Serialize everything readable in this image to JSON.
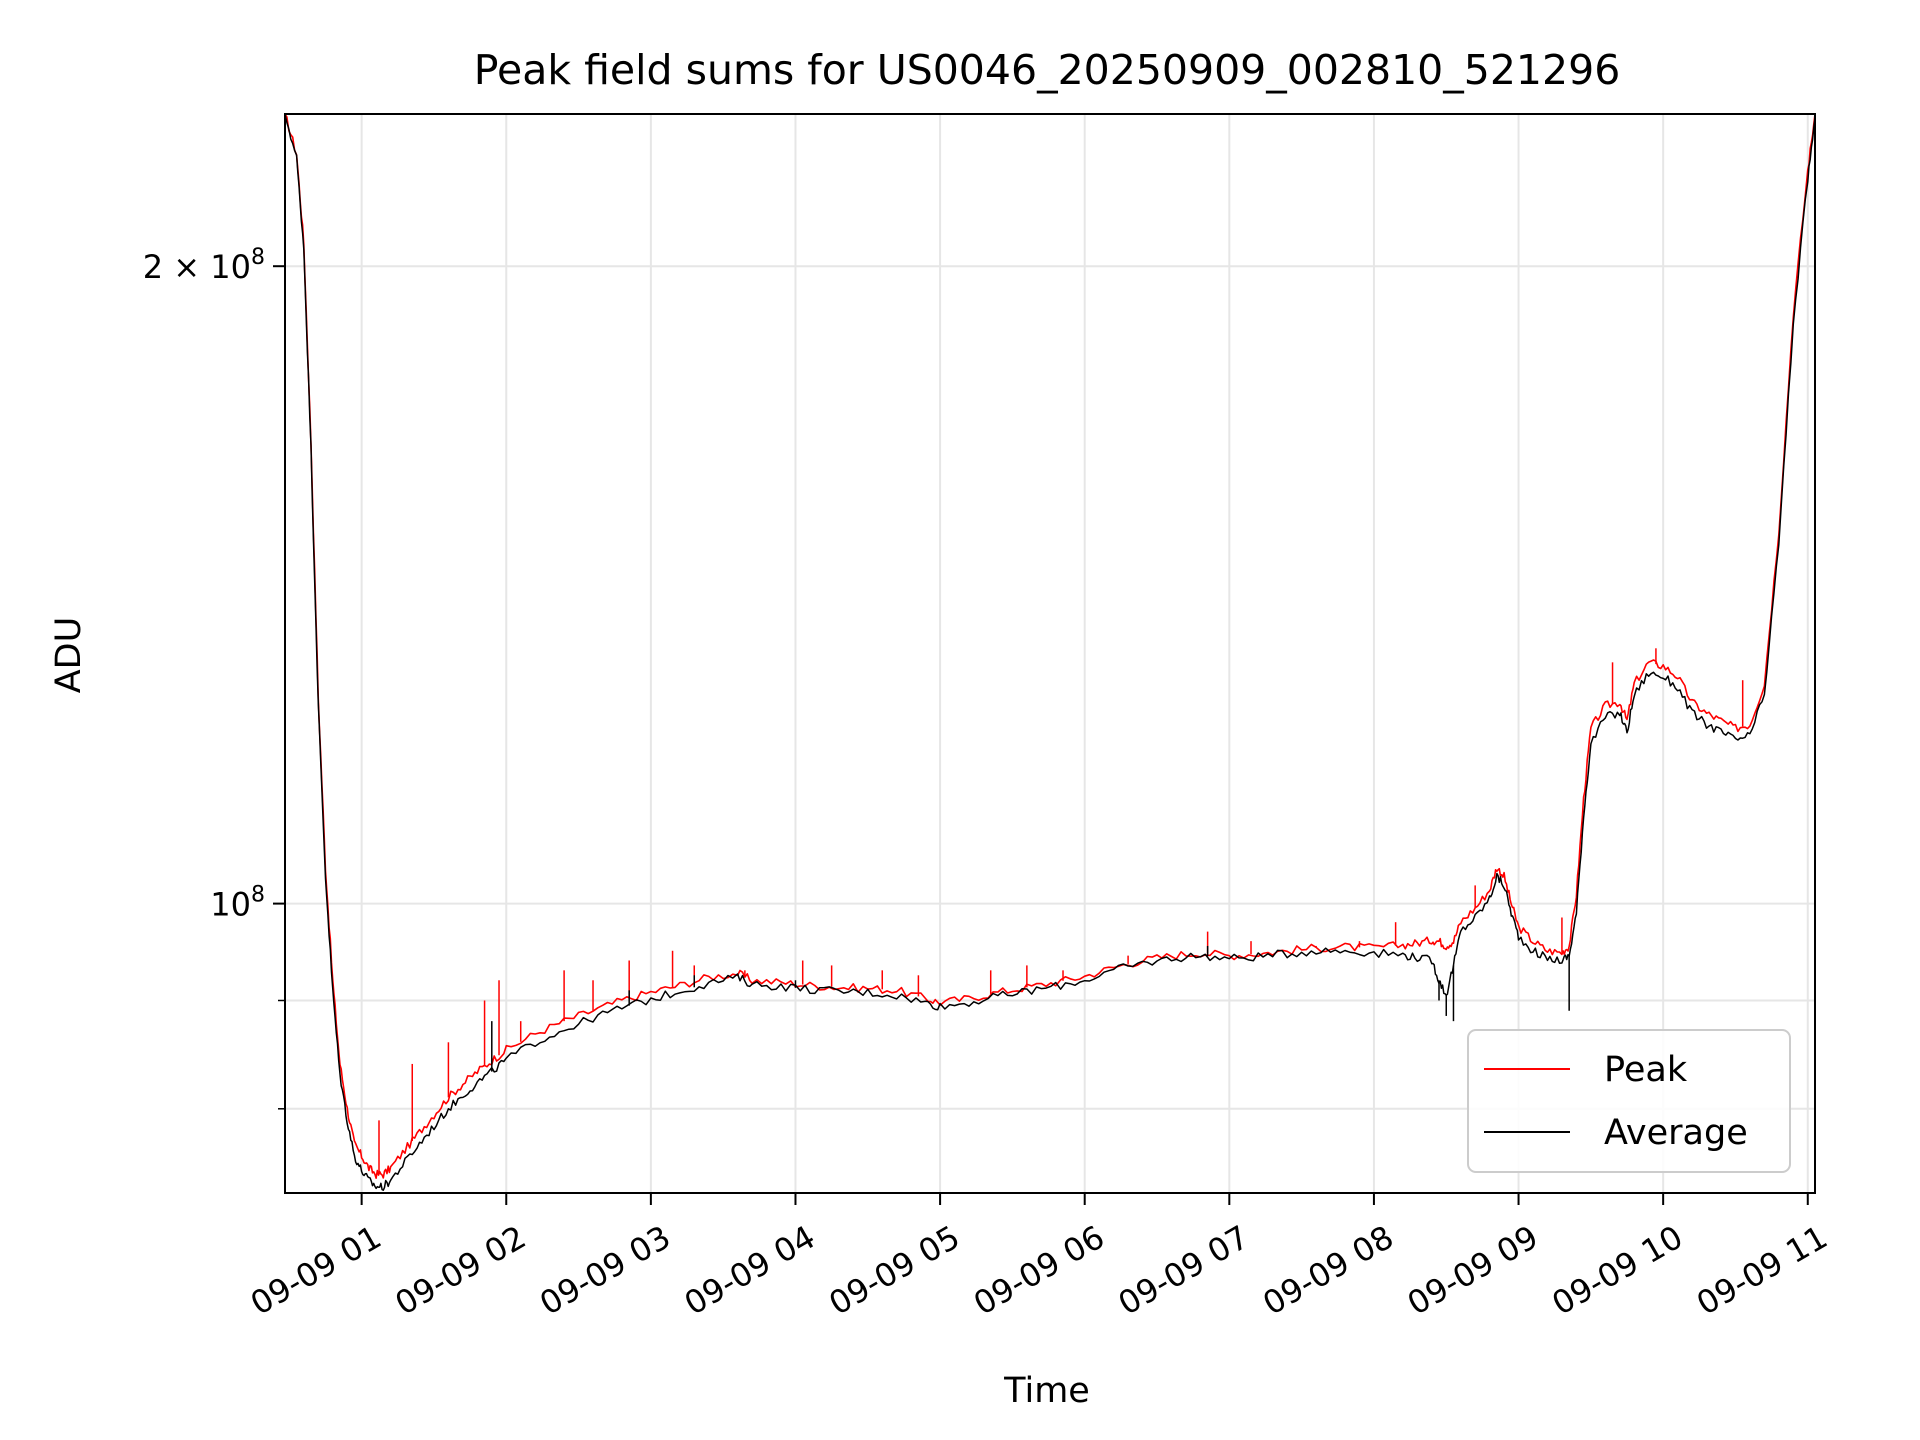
{
  "chart_data": {
    "type": "line",
    "title": "Peak field sums for US0046_20250909_002810_521296",
    "xlabel": "Time",
    "ylabel": "ADU",
    "yscale": "log",
    "ylim": [
      73000000,
      236000000
    ],
    "xlim_hours": [
      0.47,
      11.05
    ],
    "grid": true,
    "legend_position": "lower-right",
    "x_tick_labels": [
      "09-09 01",
      "09-09 02",
      "09-09 03",
      "09-09 04",
      "09-09 05",
      "09-09 06",
      "09-09 07",
      "09-09 08",
      "09-09 09",
      "09-09 10",
      "09-09 11"
    ],
    "x_tick_hours": [
      1,
      2,
      3,
      4,
      5,
      6,
      7,
      8,
      9,
      10,
      11
    ],
    "y_tick_labels": [
      {
        "value": 100000000,
        "base": "10",
        "exp": "8",
        "prefix": ""
      },
      {
        "value": 200000000,
        "base": "10",
        "exp": "8",
        "prefix": "2 × "
      }
    ],
    "y_minor_ticks": [
      80000000,
      90000000,
      300000000
    ],
    "series": [
      {
        "name": "Peak",
        "color": "#ff0000",
        "values": [
          [
            0.47,
            236000000
          ],
          [
            0.55,
            226000000
          ],
          [
            0.6,
            205000000
          ],
          [
            0.65,
            165000000
          ],
          [
            0.7,
            125000000
          ],
          [
            0.75,
            104000000
          ],
          [
            0.8,
            92000000
          ],
          [
            0.85,
            84000000
          ],
          [
            0.9,
            80000000
          ],
          [
            0.95,
            77000000
          ],
          [
            1.0,
            76000000
          ],
          [
            1.05,
            75000000
          ],
          [
            1.1,
            74500000
          ],
          [
            1.15,
            74500000
          ],
          [
            1.2,
            75000000
          ],
          [
            1.3,
            76500000
          ],
          [
            1.4,
            78000000
          ],
          [
            1.5,
            79500000
          ],
          [
            1.6,
            81000000
          ],
          [
            1.7,
            82200000
          ],
          [
            1.8,
            83300000
          ],
          [
            1.9,
            84300000
          ],
          [
            2.0,
            85300000
          ],
          [
            2.2,
            86800000
          ],
          [
            2.4,
            88000000
          ],
          [
            2.6,
            89000000
          ],
          [
            2.8,
            90000000
          ],
          [
            3.0,
            90800000
          ],
          [
            3.2,
            91500000
          ],
          [
            3.4,
            92300000
          ],
          [
            3.6,
            92700000
          ],
          [
            3.7,
            92000000
          ],
          [
            3.9,
            91800000
          ],
          [
            4.1,
            91500000
          ],
          [
            4.3,
            91300000
          ],
          [
            4.5,
            91200000
          ],
          [
            4.7,
            91000000
          ],
          [
            4.9,
            90200000
          ],
          [
            5.0,
            89800000
          ],
          [
            5.2,
            90200000
          ],
          [
            5.4,
            90800000
          ],
          [
            5.6,
            91300000
          ],
          [
            5.8,
            91800000
          ],
          [
            6.0,
            92400000
          ],
          [
            6.2,
            93300000
          ],
          [
            6.4,
            94000000
          ],
          [
            6.6,
            94500000
          ],
          [
            6.8,
            94800000
          ],
          [
            7.0,
            94500000
          ],
          [
            7.2,
            94700000
          ],
          [
            7.4,
            95000000
          ],
          [
            7.6,
            95300000
          ],
          [
            7.8,
            95400000
          ],
          [
            8.0,
            95300000
          ],
          [
            8.2,
            95600000
          ],
          [
            8.3,
            95800000
          ],
          [
            8.4,
            96100000
          ],
          [
            8.45,
            96000000
          ],
          [
            8.5,
            95500000
          ],
          [
            8.55,
            96000000
          ],
          [
            8.6,
            98000000
          ],
          [
            8.7,
            99500000
          ],
          [
            8.8,
            101500000
          ],
          [
            8.85,
            104000000
          ],
          [
            8.9,
            103000000
          ],
          [
            8.95,
            100000000
          ],
          [
            9.0,
            97500000
          ],
          [
            9.1,
            96000000
          ],
          [
            9.2,
            95000000
          ],
          [
            9.3,
            94800000
          ],
          [
            9.35,
            95500000
          ],
          [
            9.4,
            101000000
          ],
          [
            9.45,
            112000000
          ],
          [
            9.5,
            121000000
          ],
          [
            9.6,
            124000000
          ],
          [
            9.7,
            124500000
          ],
          [
            9.75,
            122000000
          ],
          [
            9.8,
            127000000
          ],
          [
            9.9,
            130000000
          ],
          [
            10.0,
            129500000
          ],
          [
            10.1,
            128000000
          ],
          [
            10.2,
            124500000
          ],
          [
            10.3,
            123000000
          ],
          [
            10.4,
            122000000
          ],
          [
            10.5,
            121000000
          ],
          [
            10.6,
            121500000
          ],
          [
            10.7,
            127000000
          ],
          [
            10.8,
            150000000
          ],
          [
            10.9,
            190000000
          ],
          [
            11.0,
            222000000
          ],
          [
            11.05,
            236000000
          ]
        ]
      },
      {
        "name": "Average",
        "color": "#000000",
        "values": [
          [
            0.47,
            236000000
          ],
          [
            0.55,
            225000000
          ],
          [
            0.6,
            204000000
          ],
          [
            0.65,
            164000000
          ],
          [
            0.7,
            124000000
          ],
          [
            0.75,
            103000000
          ],
          [
            0.8,
            91000000
          ],
          [
            0.85,
            83000000
          ],
          [
            0.9,
            79000000
          ],
          [
            0.95,
            76000000
          ],
          [
            1.0,
            74800000
          ],
          [
            1.05,
            74000000
          ],
          [
            1.1,
            73500000
          ],
          [
            1.15,
            73500000
          ],
          [
            1.2,
            74000000
          ],
          [
            1.3,
            75500000
          ],
          [
            1.4,
            77000000
          ],
          [
            1.5,
            78500000
          ],
          [
            1.6,
            80000000
          ],
          [
            1.7,
            81200000
          ],
          [
            1.8,
            82300000
          ],
          [
            1.9,
            83300000
          ],
          [
            2.0,
            84400000
          ],
          [
            2.2,
            86000000
          ],
          [
            2.4,
            87200000
          ],
          [
            2.6,
            88300000
          ],
          [
            2.8,
            89300000
          ],
          [
            3.0,
            90100000
          ],
          [
            3.2,
            90900000
          ],
          [
            3.4,
            91700000
          ],
          [
            3.6,
            92300000
          ],
          [
            3.7,
            91600000
          ],
          [
            3.9,
            91400000
          ],
          [
            4.1,
            91100000
          ],
          [
            4.3,
            90900000
          ],
          [
            4.5,
            90800000
          ],
          [
            4.7,
            90500000
          ],
          [
            4.9,
            89800000
          ],
          [
            5.0,
            89400000
          ],
          [
            5.2,
            89800000
          ],
          [
            5.4,
            90400000
          ],
          [
            5.6,
            90900000
          ],
          [
            5.8,
            91400000
          ],
          [
            6.0,
            92000000
          ],
          [
            6.2,
            93000000
          ],
          [
            6.4,
            93700000
          ],
          [
            6.6,
            94200000
          ],
          [
            6.8,
            94500000
          ],
          [
            7.0,
            94200000
          ],
          [
            7.2,
            94400000
          ],
          [
            7.4,
            94700000
          ],
          [
            7.6,
            95000000
          ],
          [
            7.8,
            95000000
          ],
          [
            8.0,
            94800000
          ],
          [
            8.2,
            94600000
          ],
          [
            8.3,
            94300000
          ],
          [
            8.4,
            94000000
          ],
          [
            8.45,
            92000000
          ],
          [
            8.5,
            90500000
          ],
          [
            8.55,
            93500000
          ],
          [
            8.6,
            97000000
          ],
          [
            8.7,
            98500000
          ],
          [
            8.8,
            100500000
          ],
          [
            8.85,
            103000000
          ],
          [
            8.9,
            102000000
          ],
          [
            8.95,
            99000000
          ],
          [
            9.0,
            96500000
          ],
          [
            9.1,
            95000000
          ],
          [
            9.2,
            94200000
          ],
          [
            9.3,
            94000000
          ],
          [
            9.35,
            94500000
          ],
          [
            9.4,
            99000000
          ],
          [
            9.45,
            110000000
          ],
          [
            9.5,
            119000000
          ],
          [
            9.6,
            122500000
          ],
          [
            9.7,
            123000000
          ],
          [
            9.75,
            120500000
          ],
          [
            9.8,
            125500000
          ],
          [
            9.9,
            128500000
          ],
          [
            10.0,
            128000000
          ],
          [
            10.1,
            126500000
          ],
          [
            10.2,
            123000000
          ],
          [
            10.3,
            121500000
          ],
          [
            10.4,
            120500000
          ],
          [
            10.5,
            119500000
          ],
          [
            10.6,
            120000000
          ],
          [
            10.7,
            125500000
          ],
          [
            10.8,
            148000000
          ],
          [
            10.9,
            188000000
          ],
          [
            11.0,
            220000000
          ],
          [
            11.05,
            235000000
          ]
        ]
      }
    ],
    "spikes": {
      "Peak": [
        [
          1.12,
          79000000
        ],
        [
          1.35,
          84000000
        ],
        [
          1.6,
          86000000
        ],
        [
          1.85,
          90000000
        ],
        [
          1.95,
          92000000
        ],
        [
          2.1,
          88000000
        ],
        [
          2.4,
          93000000
        ],
        [
          2.6,
          92000000
        ],
        [
          2.85,
          94000000
        ],
        [
          3.15,
          95000000
        ],
        [
          3.3,
          93500000
        ],
        [
          3.65,
          93000000
        ],
        [
          4.05,
          94000000
        ],
        [
          4.25,
          93500000
        ],
        [
          4.6,
          93000000
        ],
        [
          4.85,
          92500000
        ],
        [
          5.35,
          93000000
        ],
        [
          5.6,
          93500000
        ],
        [
          5.85,
          93000000
        ],
        [
          6.3,
          94500000
        ],
        [
          6.85,
          97000000
        ],
        [
          7.15,
          96000000
        ],
        [
          7.6,
          95500000
        ],
        [
          7.9,
          96000000
        ],
        [
          8.15,
          98000000
        ],
        [
          8.7,
          102000000
        ],
        [
          9.3,
          98500000
        ],
        [
          9.65,
          130000000
        ],
        [
          9.95,
          132000000
        ],
        [
          10.55,
          127500000
        ]
      ],
      "Average": [
        [
          1.9,
          88000000
        ],
        [
          2.85,
          91000000
        ],
        [
          3.3,
          92500000
        ],
        [
          4.0,
          92000000
        ],
        [
          6.85,
          95500000
        ],
        [
          8.5,
          88500000
        ],
        [
          8.55,
          88000000
        ],
        [
          9.35,
          89000000
        ],
        [
          8.45,
          90000000
        ]
      ]
    }
  },
  "legend": {
    "items": [
      {
        "label": "Peak",
        "color": "#ff0000"
      },
      {
        "label": "Average",
        "color": "#000000"
      }
    ]
  }
}
